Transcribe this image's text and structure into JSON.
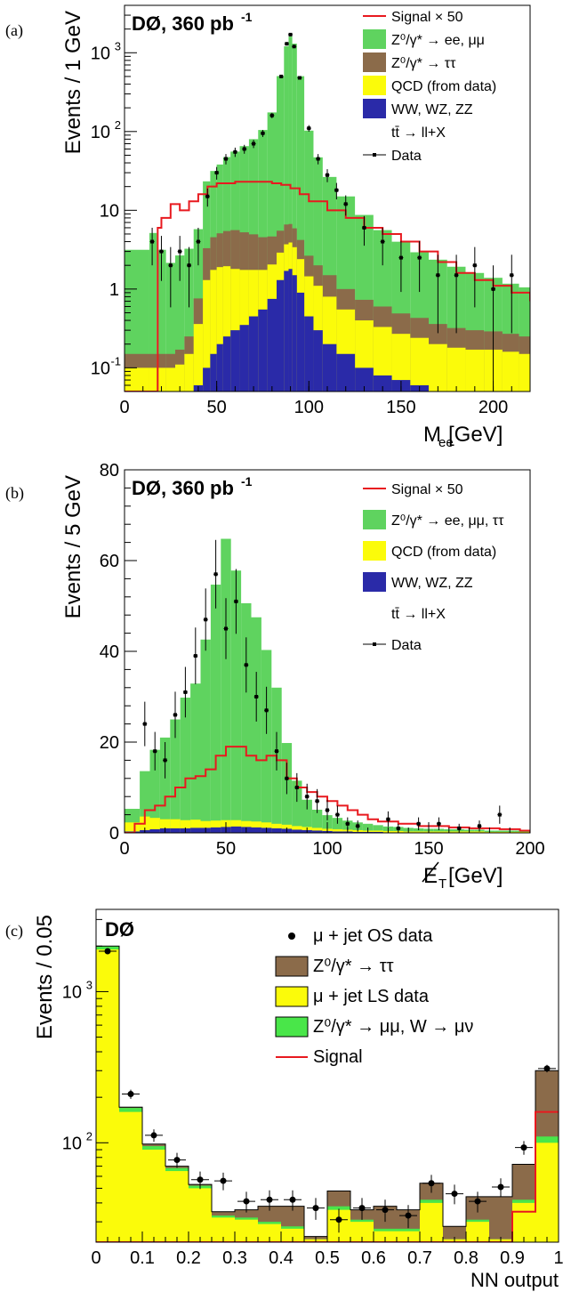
{
  "chart_data": [
    {
      "panel_label": "(a)",
      "type": "bar",
      "title": "DØ, 360 pb",
      "title_sup": "-1",
      "xlabel": "M",
      "xlabel_sub": "ee",
      "xlabel_unit": " [GeV]",
      "ylabel": "Events /  1 GeV",
      "xlim": [
        0,
        220
      ],
      "ylim": [
        0.05,
        4000
      ],
      "log_y": true,
      "x_ticks": [
        0,
        50,
        100,
        150,
        200
      ],
      "y_ticks": [
        {
          "v": 0.1,
          "label": "10",
          "sup": "-1"
        },
        {
          "v": 1,
          "label": "1"
        },
        {
          "v": 10,
          "label": "10"
        },
        {
          "v": 100,
          "label": "10",
          "sup": "2"
        },
        {
          "v": 1000,
          "label": "10",
          "sup": "3"
        }
      ],
      "legend": [
        {
          "kind": "line",
          "color": "#e8191f",
          "text": "Signal × 50"
        },
        {
          "kind": "box",
          "color": "#5fd35f",
          "text": "Z⁰/γ* → ee, μμ"
        },
        {
          "kind": "box",
          "color": "#8b6b4a",
          "text": "Z⁰/γ* → ττ"
        },
        {
          "kind": "box",
          "color": "#fbfb0a",
          "text": "QCD (from data)"
        },
        {
          "kind": "box",
          "color": "#2a2aa8",
          "text": "WW, WZ, ZZ"
        },
        {
          "kind": "none",
          "color": "#ffffff",
          "text": "tt̄ → ll+X"
        },
        {
          "kind": "marker",
          "color": "#000000",
          "text": "Data"
        }
      ],
      "x": [
        12,
        15,
        20,
        25,
        30,
        35,
        40,
        45,
        48,
        52,
        55,
        60,
        65,
        70,
        75,
        80,
        85,
        88,
        90,
        92,
        95,
        100,
        105,
        110,
        120,
        130,
        140,
        150,
        160,
        170,
        180,
        190,
        200,
        210,
        218
      ],
      "series": [
        {
          "name": "WW, WZ, ZZ",
          "color": "#2a2aa8",
          "values": [
            0.05,
            0.05,
            0.05,
            0.05,
            0.05,
            0.05,
            0.06,
            0.1,
            0.15,
            0.2,
            0.25,
            0.3,
            0.35,
            0.45,
            0.55,
            0.75,
            1.3,
            1.7,
            1.8,
            1.5,
            0.9,
            0.45,
            0.3,
            0.2,
            0.15,
            0.1,
            0.08,
            0.07,
            0.06,
            0.05,
            0.05,
            0.05,
            0.05,
            0.05,
            0.05
          ]
        },
        {
          "name": "QCD (from data)",
          "color": "#fbfb0a",
          "values": [
            0.05,
            0.05,
            0.05,
            0.05,
            0.06,
            0.1,
            0.3,
            1.2,
            1.6,
            1.7,
            1.7,
            1.5,
            1.4,
            1.3,
            1.2,
            1.3,
            1.6,
            2.0,
            2.1,
            1.9,
            1.5,
            1.0,
            0.8,
            0.6,
            0.4,
            0.3,
            0.25,
            0.2,
            0.18,
            0.15,
            0.13,
            0.12,
            0.12,
            0.11,
            0.1
          ]
        },
        {
          "name": "Z⁰/γ* → ττ",
          "color": "#8b6b4a",
          "values": [
            0.05,
            0.05,
            0.05,
            0.05,
            0.06,
            0.1,
            0.4,
            2.0,
            2.8,
            3.2,
            3.5,
            3.8,
            3.5,
            3.2,
            2.8,
            2.6,
            2.6,
            2.9,
            2.8,
            2.5,
            1.8,
            1.2,
            0.9,
            0.7,
            0.45,
            0.33,
            0.27,
            0.22,
            0.19,
            0.16,
            0.14,
            0.13,
            0.12,
            0.11,
            0.1
          ]
        },
        {
          "name": "Z⁰/γ* → ee, μμ",
          "color": "#5fd35f",
          "values": [
            3,
            5,
            3,
            2,
            2.5,
            3,
            5,
            20,
            27,
            33,
            42,
            50,
            60,
            75,
            100,
            170,
            500,
            1200,
            1600,
            1300,
            500,
            100,
            45,
            25,
            14,
            8,
            5,
            3.5,
            2.5,
            2,
            1.6,
            1.3,
            1.1,
            0.9,
            0.8
          ]
        }
      ],
      "signal": {
        "name": "Signal × 50",
        "color": "#e8191f",
        "x": [
          0,
          15,
          18,
          20,
          25,
          30,
          35,
          40,
          45,
          50,
          60,
          70,
          80,
          85,
          90,
          95,
          100,
          110,
          120,
          130,
          140,
          150,
          160,
          170,
          180,
          190,
          200,
          210,
          220
        ],
        "values": [
          0.05,
          0.05,
          6,
          8,
          12,
          10,
          13,
          16,
          20,
          22,
          23,
          23,
          22,
          21,
          19,
          16,
          13,
          10,
          8,
          6,
          5,
          4,
          3,
          2.2,
          1.6,
          1.3,
          1.1,
          0.9,
          0.7
        ]
      },
      "data": {
        "name": "Data",
        "x": [
          15,
          20,
          25,
          30,
          35,
          40,
          45,
          50,
          55,
          60,
          65,
          70,
          75,
          80,
          85,
          88,
          90,
          92,
          95,
          100,
          105,
          110,
          115,
          120,
          130,
          140,
          150,
          160,
          170,
          180,
          190,
          200,
          210
        ],
        "values": [
          4,
          3,
          2,
          3,
          2,
          4,
          15,
          30,
          45,
          55,
          60,
          70,
          95,
          160,
          500,
          1300,
          1700,
          1200,
          480,
          110,
          45,
          28,
          18,
          12,
          6,
          4,
          2.5,
          2.5,
          1.5,
          1.5,
          2,
          1,
          1.5
        ]
      }
    },
    {
      "panel_label": "(b)",
      "type": "bar",
      "title": "DØ, 360 pb",
      "title_sup": "-1",
      "xlabel": "E",
      "xlabel_sub": "T",
      "xlabel_unit": " [GeV]",
      "ylabel": "Events /  5 GeV",
      "xlim": [
        0,
        200
      ],
      "ylim": [
        0,
        80
      ],
      "log_y": false,
      "x_ticks": [
        0,
        50,
        100,
        150,
        200
      ],
      "y_ticks": [
        {
          "v": 0,
          "label": "0"
        },
        {
          "v": 20,
          "label": "20"
        },
        {
          "v": 40,
          "label": "40"
        },
        {
          "v": 60,
          "label": "60"
        },
        {
          "v": 80,
          "label": "80"
        }
      ],
      "legend": [
        {
          "kind": "line",
          "color": "#e8191f",
          "text": "Signal × 50"
        },
        {
          "kind": "box",
          "color": "#5fd35f",
          "text": "Z⁰/γ* → ee, μμ, ττ"
        },
        {
          "kind": "box",
          "color": "#fbfb0a",
          "text": "QCD (from data)"
        },
        {
          "kind": "box",
          "color": "#2a2aa8",
          "text": "WW, WZ, ZZ"
        },
        {
          "kind": "none",
          "color": "#ffffff",
          "text": "tt̄ → ll+X"
        },
        {
          "kind": "marker",
          "color": "#000000",
          "text": "Data"
        }
      ],
      "x": [
        5,
        10,
        15,
        20,
        25,
        30,
        35,
        40,
        45,
        50,
        55,
        60,
        65,
        70,
        75,
        80,
        85,
        90,
        95,
        100,
        105,
        110,
        115,
        120,
        125,
        130,
        135,
        140,
        145,
        150,
        155,
        160,
        165,
        170,
        175,
        180,
        185,
        190,
        195
      ],
      "series": [
        {
          "name": "WW, WZ, ZZ",
          "color": "#2a2aa8",
          "values": [
            0.3,
            0.6,
            0.8,
            1,
            1,
            1,
            1.1,
            1.1,
            1.2,
            1.3,
            1.4,
            1.3,
            1.2,
            1.1,
            1,
            0.9,
            0.7,
            0.6,
            0.5,
            0.4,
            0.3,
            0.3,
            0.2,
            0.2,
            0.2,
            0.1,
            0.1,
            0.1,
            0.1,
            0.1,
            0.1,
            0.1,
            0.1,
            0.1,
            0.1,
            0.1,
            0.1,
            0.1,
            0.1
          ]
        },
        {
          "name": "QCD (from data)",
          "color": "#fbfb0a",
          "values": [
            2,
            3,
            2.5,
            2,
            2,
            1.8,
            1.8,
            1.5,
            1.5,
            1.5,
            1.4,
            1.3,
            1.3,
            1.2,
            1,
            0.9,
            0.8,
            0.7,
            0.6,
            0.5,
            0.5,
            0.4,
            0.4,
            0.3,
            0.3,
            0.3,
            0.3,
            0.2,
            0.2,
            0.2,
            0.2,
            0.2,
            0.2,
            0.2,
            0.2,
            0.1,
            0.1,
            0.1,
            0.1
          ]
        },
        {
          "name": "Z⁰/γ* → ee, μμ, ττ",
          "color": "#5fd35f",
          "values": [
            3,
            10,
            15,
            18,
            22,
            27,
            30,
            40,
            52,
            62,
            55,
            48,
            45,
            38,
            30,
            18,
            10,
            6,
            4,
            3,
            2.5,
            2,
            1.7,
            1.5,
            1.2,
            1,
            0.9,
            0.8,
            0.7,
            0.6,
            0.6,
            0.5,
            0.5,
            0.4,
            0.4,
            0.3,
            0.3,
            0.3,
            0.3
          ]
        }
      ],
      "signal": {
        "name": "Signal × 50",
        "color": "#e8191f",
        "x": [
          0,
          5,
          10,
          15,
          20,
          25,
          30,
          35,
          40,
          45,
          50,
          55,
          60,
          65,
          70,
          75,
          80,
          85,
          90,
          95,
          100,
          105,
          110,
          115,
          120,
          125,
          130,
          135,
          140,
          145,
          150,
          155,
          160,
          165,
          170,
          175,
          180,
          185,
          190,
          195,
          200
        ],
        "values": [
          0,
          2,
          5,
          6,
          8,
          10,
          12,
          12.5,
          14,
          17,
          19,
          19,
          17,
          16,
          17,
          16,
          12,
          10,
          9,
          8,
          7,
          6,
          5,
          4,
          3,
          2.5,
          2.5,
          2,
          2,
          1.5,
          1.5,
          1.5,
          1.2,
          1.2,
          1,
          1,
          1,
          0.8,
          0.8,
          0.5,
          0
        ]
      },
      "data": {
        "name": "Data",
        "x": [
          10,
          15,
          20,
          25,
          30,
          35,
          40,
          45,
          50,
          55,
          60,
          65,
          70,
          75,
          80,
          85,
          90,
          95,
          100,
          105,
          110,
          115,
          130,
          135,
          145,
          155,
          165,
          175,
          185
        ],
        "values": [
          24,
          18,
          16,
          26,
          31,
          39,
          47,
          57,
          45,
          51,
          37,
          30,
          27,
          18,
          12,
          10,
          8,
          7,
          5,
          4,
          2,
          1.5,
          3,
          1,
          2,
          2,
          1,
          1.5,
          4
        ]
      }
    },
    {
      "panel_label": "(c)",
      "type": "bar",
      "title": "DØ",
      "xlabel": "NN output",
      "ylabel": "Events / 0.05",
      "xlim": [
        0,
        1
      ],
      "ylim": [
        22,
        3500
      ],
      "log_y": true,
      "x_ticks": [
        0,
        0.1,
        0.2,
        0.3,
        0.4,
        0.5,
        0.6,
        0.7,
        0.8,
        0.9,
        1
      ],
      "x_tick_labels": [
        "0",
        "0.1",
        "0.2",
        "0.3",
        "0.4",
        "0.5",
        "0.6",
        "0.7",
        "0.8",
        "0.9",
        "1"
      ],
      "y_ticks": [
        {
          "v": 100,
          "label": "10",
          "sup": "2"
        },
        {
          "v": 1000,
          "label": "10",
          "sup": "3"
        }
      ],
      "legend": [
        {
          "kind": "dot",
          "color": "#000000",
          "text": "μ + jet OS data"
        },
        {
          "kind": "box",
          "color": "#8b6b4a",
          "text": "Z⁰/γ* → ττ"
        },
        {
          "kind": "box",
          "color": "#fbfb0a",
          "text": "μ + jet LS data"
        },
        {
          "kind": "box",
          "color": "#49e649",
          "text": "Z⁰/γ* → μμ, W → μν"
        },
        {
          "kind": "line",
          "color": "#e8191f",
          "text": "Signal"
        }
      ],
      "x": [
        0.025,
        0.075,
        0.125,
        0.175,
        0.225,
        0.275,
        0.325,
        0.375,
        0.425,
        0.475,
        0.525,
        0.575,
        0.625,
        0.675,
        0.725,
        0.775,
        0.825,
        0.875,
        0.925,
        0.975
      ],
      "series": [
        {
          "name": "μ + jet LS data",
          "color": "#fbfb0a",
          "values": [
            1900,
            160,
            90,
            65,
            50,
            32,
            31,
            29,
            27,
            23,
            36,
            30,
            26,
            26,
            40,
            23,
            30,
            23,
            40,
            100
          ]
        },
        {
          "name": "Z⁰/γ* → μμ, W → μν",
          "color": "#49e649",
          "values": [
            2000,
            170,
            95,
            68,
            52,
            33,
            32,
            30,
            28,
            23,
            38,
            31,
            27,
            27,
            42,
            23,
            31,
            23,
            42,
            110
          ]
        },
        {
          "name": "Z⁰/γ* → ττ",
          "color": "#8b6b4a",
          "values": [
            2000,
            172,
            98,
            70,
            53,
            35,
            36,
            38,
            38,
            24,
            48,
            36,
            38,
            36,
            54,
            28,
            44,
            44,
            72,
            300
          ]
        }
      ],
      "signal": {
        "name": "Signal",
        "color": "#e8191f",
        "x": [
          0,
          0.85,
          0.85,
          0.9,
          0.9,
          0.95,
          0.95,
          1
        ],
        "values": [
          22,
          22,
          22,
          22,
          35,
          35,
          160,
          160
        ]
      },
      "data": {
        "name": "μ + jet OS data",
        "x": [
          0.025,
          0.075,
          0.125,
          0.175,
          0.225,
          0.275,
          0.325,
          0.375,
          0.425,
          0.475,
          0.525,
          0.575,
          0.625,
          0.675,
          0.725,
          0.775,
          0.825,
          0.875,
          0.925,
          0.975
        ],
        "values": [
          1850,
          210,
          112,
          77,
          57,
          56,
          41,
          42,
          42,
          37,
          31,
          37,
          36,
          33,
          54,
          46,
          41,
          51,
          93,
          310
        ]
      }
    }
  ]
}
